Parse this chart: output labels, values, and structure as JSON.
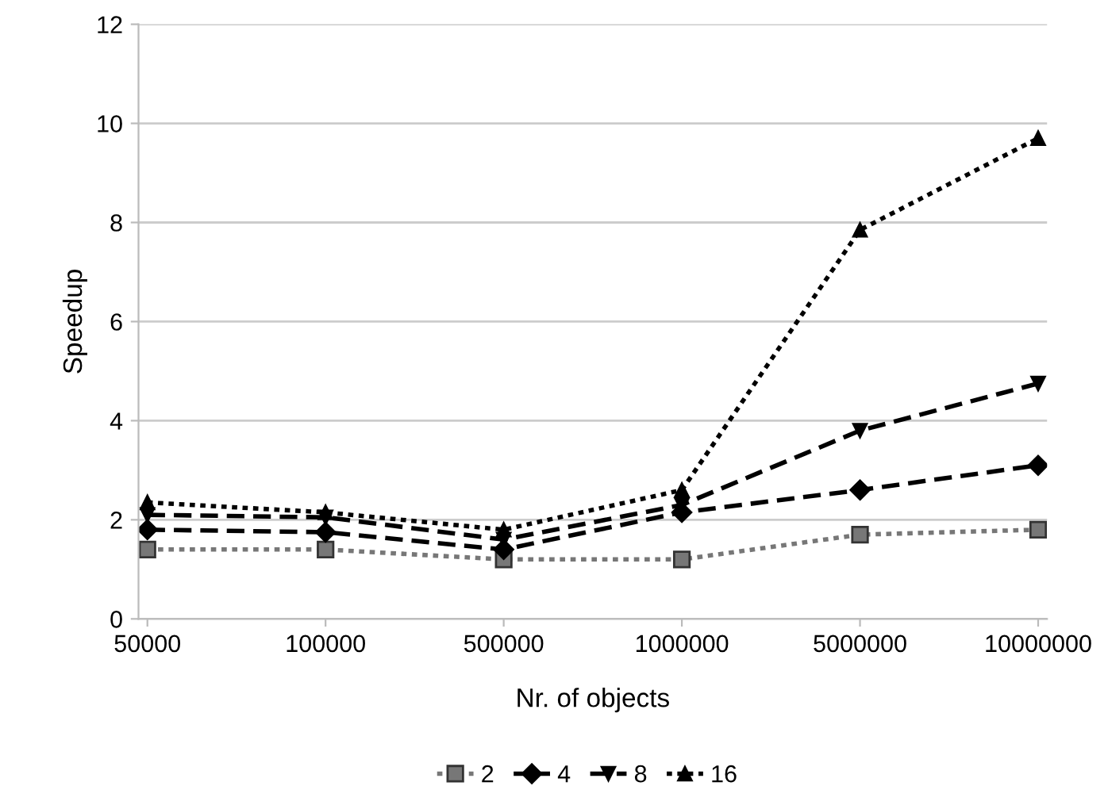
{
  "chart_data": {
    "type": "line",
    "xlabel": "Nr. of objects",
    "ylabel": "Speedup",
    "categories": [
      "50000",
      "100000",
      "500000",
      "1000000",
      "5000000",
      "10000000"
    ],
    "series": [
      {
        "name": "2",
        "color": "#777777",
        "marker": "square",
        "line_style": "dotted",
        "values": [
          1.4,
          1.4,
          1.2,
          1.2,
          1.7,
          1.8
        ]
      },
      {
        "name": "4",
        "color": "#000000",
        "marker": "diamond",
        "line_style": "dashed",
        "values": [
          1.8,
          1.75,
          1.4,
          2.15,
          2.6,
          3.1
        ]
      },
      {
        "name": "8",
        "color": "#000000",
        "marker": "triangle_down",
        "line_style": "dashed",
        "values": [
          2.1,
          2.05,
          1.6,
          2.3,
          3.8,
          4.75
        ]
      },
      {
        "name": "16",
        "color": "#000000",
        "marker": "triangle",
        "line_style": "dotted",
        "values": [
          2.35,
          2.15,
          1.8,
          2.6,
          7.85,
          9.7
        ]
      }
    ],
    "ylim": [
      0,
      12
    ],
    "yticks": [
      0,
      2,
      4,
      6,
      8,
      10,
      12
    ],
    "grid": "y",
    "legend": "bottom"
  }
}
